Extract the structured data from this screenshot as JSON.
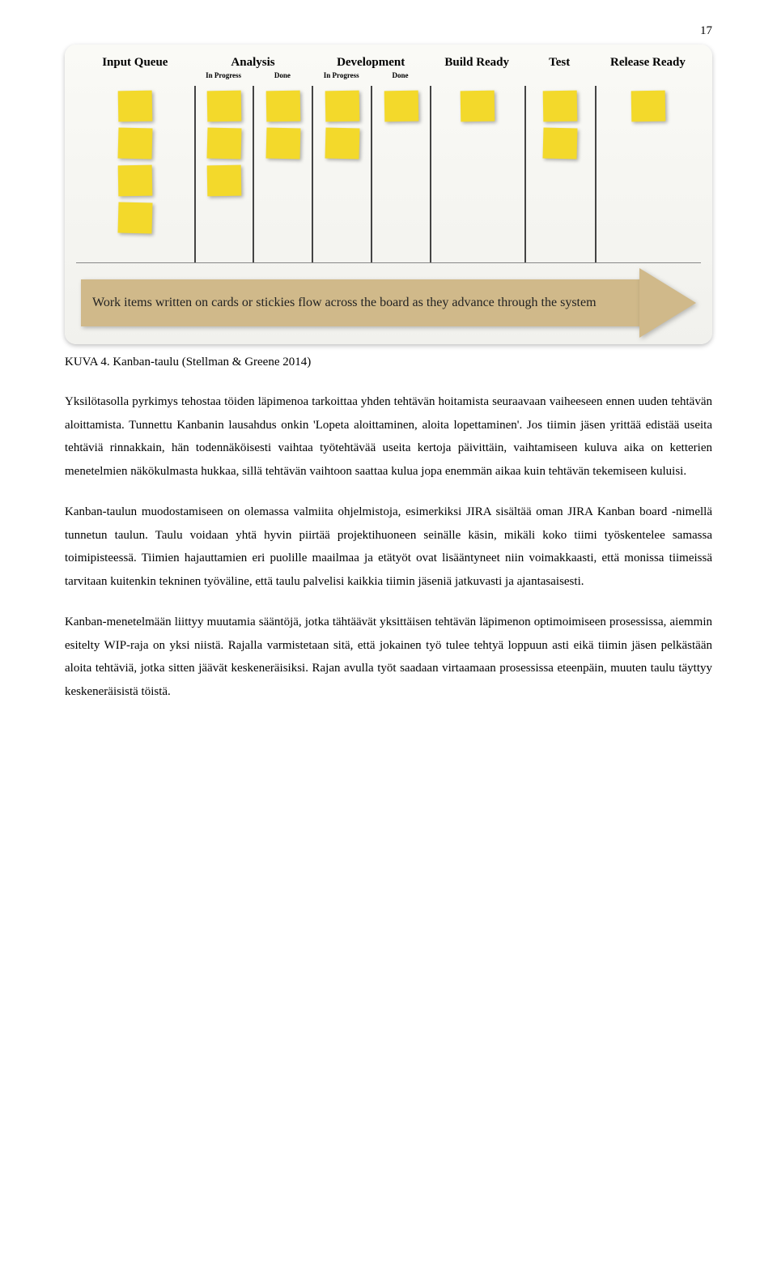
{
  "page_number": "17",
  "kanban": {
    "columns": [
      {
        "label": "Input Queue",
        "sub": null,
        "notes": [
          4
        ]
      },
      {
        "label": "Analysis",
        "sub": [
          "In Progress",
          "Done"
        ],
        "notes": [
          3,
          2
        ]
      },
      {
        "label": "Development",
        "sub": [
          "In Progress",
          "Done"
        ],
        "notes": [
          2,
          1
        ]
      },
      {
        "label": "Build Ready",
        "sub": null,
        "notes": [
          1
        ]
      },
      {
        "label": "Test",
        "sub": null,
        "notes": [
          2
        ]
      },
      {
        "label": "Release Ready",
        "sub": null,
        "notes": [
          1
        ]
      }
    ],
    "note_color": "#f3d92b",
    "arrow_text": "Work items written on cards or stickies flow across the board as they advance through the system"
  },
  "caption": "KUVA 4. Kanban-taulu (Stellman & Greene 2014)",
  "paragraphs": [
    "Yksilötasolla pyrkimys tehostaa töiden läpimenoa tarkoittaa yhden tehtävän hoitamista seuraavaan vaiheeseen ennen uuden tehtävän aloittamista. Tunnettu Kanbanin lausahdus onkin 'Lopeta aloittaminen, aloita lopettaminen'. Jos tiimin jäsen yrittää edistää useita tehtäviä rinnakkain, hän todennäköisesti vaihtaa työtehtävää useita kertoja päivittäin, vaihtamiseen kuluva aika on ketterien menetelmien näkökulmasta hukkaa, sillä tehtävän vaihtoon saattaa kulua jopa enemmän aikaa kuin tehtävän tekemiseen kuluisi.",
    "Kanban-taulun muodostamiseen on olemassa valmiita ohjelmistoja, esimerkiksi JIRA sisältää oman JIRA Kanban board -nimellä tunnetun taulun. Taulu voidaan yhtä hyvin piirtää projektihuoneen seinälle käsin, mikäli koko tiimi työskentelee samassa toimipisteessä. Tiimien hajauttamien eri puolille maailmaa ja etätyöt ovat lisääntyneet niin voimakkaasti, että monissa tiimeissä tarvitaan kuitenkin tekninen työväline, että taulu palvelisi kaikkia tiimin jäseniä jatkuvasti ja ajantasaisesti.",
    "Kanban-menetelmään liittyy muutamia sääntöjä, jotka tähtäävät yksittäisen tehtävän läpimenon optimoimiseen prosessissa, aiemmin esitelty WIP-raja on yksi niistä. Rajalla varmistetaan sitä, että jokainen työ tulee tehtyä loppuun asti eikä tiimin jäsen pelkästään aloita tehtäviä, jotka sitten jäävät keskeneräisiksi. Rajan avulla työt saadaan virtaamaan prosessissa eteenpäin, muuten taulu täyttyy keskeneräisistä töistä."
  ]
}
